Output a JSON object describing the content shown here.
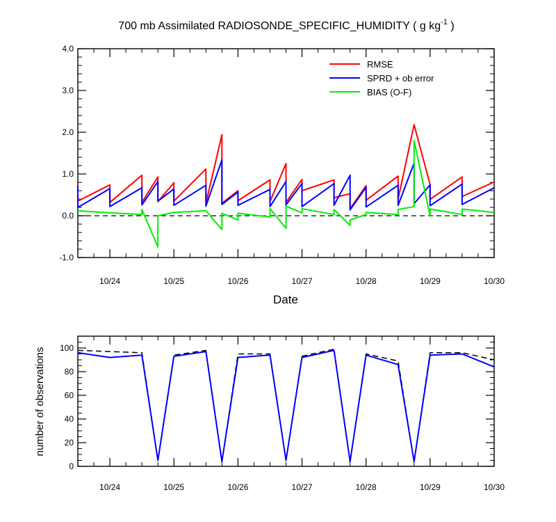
{
  "chart_data": [
    {
      "type": "line",
      "title": "700 mb Assimilated RADIOSONDE_SPECIFIC_HUMIDITY ( g kg",
      "title_exponent": "-1",
      "title_close": " )",
      "xlabel": "Date",
      "ylabel": "",
      "ylim": [
        -1.0,
        4.0
      ],
      "yticks": [
        -1.0,
        0.0,
        1.0,
        2.0,
        3.0,
        4.0
      ],
      "ytick_labels": [
        "-1.0",
        "0.0",
        "1.0",
        "2.0",
        "3.0",
        "4.0"
      ],
      "xlim": [
        23.5,
        30.0
      ],
      "xticks": [
        24,
        25,
        26,
        27,
        28,
        29,
        30
      ],
      "xtick_labels": [
        "10/24",
        "10/25",
        "10/26",
        "10/27",
        "10/28",
        "10/29",
        "10/30"
      ],
      "grid": false,
      "legend_position": "top-right",
      "reference_line": 0.0,
      "series": [
        {
          "name": "RMSE",
          "color": "#ff0000",
          "points": [
            [
              23.5,
              0.77
            ],
            [
              23.5,
              0.35
            ],
            [
              24.0,
              0.74
            ],
            [
              24.0,
              0.32
            ],
            [
              24.5,
              0.97
            ],
            [
              24.5,
              0.32
            ],
            [
              24.75,
              0.93
            ],
            [
              24.75,
              0.34
            ],
            [
              25.0,
              0.79
            ],
            [
              25.0,
              0.35
            ],
            [
              25.5,
              1.12
            ],
            [
              25.5,
              0.3
            ],
            [
              25.75,
              1.94
            ],
            [
              25.75,
              0.3
            ],
            [
              26.0,
              0.6
            ],
            [
              26.0,
              0.36
            ],
            [
              26.5,
              0.86
            ],
            [
              26.5,
              0.34
            ],
            [
              26.75,
              1.25
            ],
            [
              26.75,
              0.32
            ],
            [
              27.0,
              0.87
            ],
            [
              27.0,
              0.6
            ],
            [
              27.5,
              0.86
            ],
            [
              27.5,
              0.43
            ],
            [
              27.75,
              0.53
            ],
            [
              27.75,
              0.17
            ],
            [
              28.0,
              0.72
            ],
            [
              28.0,
              0.37
            ],
            [
              28.5,
              0.95
            ],
            [
              28.5,
              0.4
            ],
            [
              28.75,
              2.18
            ],
            [
              29.0,
              0.75
            ],
            [
              29.0,
              0.39
            ],
            [
              29.5,
              0.93
            ],
            [
              29.5,
              0.46
            ],
            [
              30.0,
              0.81
            ]
          ]
        },
        {
          "name": "SPRD + ob error",
          "color": "#0000ff",
          "points": [
            [
              23.5,
              0.72
            ],
            [
              23.5,
              0.2
            ],
            [
              24.0,
              0.65
            ],
            [
              24.0,
              0.22
            ],
            [
              24.5,
              0.67
            ],
            [
              24.5,
              0.26
            ],
            [
              24.75,
              0.82
            ],
            [
              24.75,
              0.35
            ],
            [
              25.0,
              0.64
            ],
            [
              25.0,
              0.25
            ],
            [
              25.5,
              0.73
            ],
            [
              25.5,
              0.23
            ],
            [
              25.75,
              1.34
            ],
            [
              25.75,
              0.27
            ],
            [
              26.0,
              0.57
            ],
            [
              26.0,
              0.25
            ],
            [
              26.5,
              0.63
            ],
            [
              26.5,
              0.22
            ],
            [
              26.75,
              0.82
            ],
            [
              26.75,
              0.26
            ],
            [
              27.0,
              0.77
            ],
            [
              27.0,
              0.22
            ],
            [
              27.5,
              0.77
            ],
            [
              27.5,
              0.25
            ],
            [
              27.75,
              0.97
            ],
            [
              27.75,
              0.14
            ],
            [
              28.0,
              0.68
            ],
            [
              28.0,
              0.21
            ],
            [
              28.5,
              0.73
            ],
            [
              28.5,
              0.25
            ],
            [
              28.75,
              1.26
            ],
            [
              28.75,
              0.29
            ],
            [
              29.0,
              0.74
            ],
            [
              29.0,
              0.24
            ],
            [
              29.5,
              0.76
            ],
            [
              29.5,
              0.27
            ],
            [
              30.0,
              0.67
            ]
          ]
        },
        {
          "name": "BIAS (O-F)",
          "color": "#00ee00",
          "points": [
            [
              23.5,
              0.12
            ],
            [
              24.0,
              0.07
            ],
            [
              24.5,
              0.03
            ],
            [
              24.5,
              0.15
            ],
            [
              24.75,
              -0.75
            ],
            [
              24.75,
              0.0
            ],
            [
              25.0,
              0.08
            ],
            [
              25.5,
              0.12
            ],
            [
              25.75,
              -0.33
            ],
            [
              25.75,
              0.06
            ],
            [
              26.0,
              -0.1
            ],
            [
              26.0,
              0.06
            ],
            [
              26.5,
              -0.03
            ],
            [
              26.5,
              0.17
            ],
            [
              26.75,
              -0.3
            ],
            [
              26.75,
              0.23
            ],
            [
              27.0,
              0.07
            ],
            [
              27.0,
              0.17
            ],
            [
              27.5,
              0.03
            ],
            [
              27.5,
              0.15
            ],
            [
              27.75,
              -0.23
            ],
            [
              27.75,
              -0.1
            ],
            [
              28.0,
              0.03
            ],
            [
              28.0,
              0.08
            ],
            [
              28.5,
              0.03
            ],
            [
              28.5,
              0.15
            ],
            [
              28.75,
              0.22
            ],
            [
              28.75,
              1.8
            ],
            [
              29.0,
              0.0
            ],
            [
              29.0,
              0.16
            ],
            [
              29.5,
              0.03
            ],
            [
              29.5,
              0.16
            ],
            [
              30.0,
              0.08
            ]
          ]
        }
      ]
    },
    {
      "type": "line",
      "title": "",
      "xlabel": "",
      "ylabel": "number of observations",
      "ylim": [
        0,
        110
      ],
      "yticks": [
        0,
        20,
        40,
        60,
        80,
        100
      ],
      "ytick_labels": [
        "0",
        "20",
        "40",
        "60",
        "80",
        "100"
      ],
      "xlim": [
        23.5,
        30.0
      ],
      "xticks": [
        24,
        25,
        26,
        27,
        28,
        29,
        30
      ],
      "xtick_labels": [
        "10/24",
        "10/25",
        "10/26",
        "10/27",
        "10/28",
        "10/29",
        "10/30"
      ],
      "grid": false,
      "series": [
        {
          "color": "#000000",
          "dashed": true,
          "points": [
            [
              23.5,
              98
            ],
            [
              24.5,
              96
            ],
            [
              24.75,
              5
            ],
            [
              25.0,
              94
            ],
            [
              25.5,
              98
            ],
            [
              25.75,
              4
            ],
            [
              26.0,
              95
            ],
            [
              26.5,
              95
            ],
            [
              26.75,
              5
            ],
            [
              27.0,
              93
            ],
            [
              27.5,
              99
            ],
            [
              27.75,
              4
            ],
            [
              28.0,
              95
            ],
            [
              28.5,
              89
            ],
            [
              28.75,
              4
            ],
            [
              29.0,
              96
            ],
            [
              29.5,
              96
            ],
            [
              30.0,
              90
            ]
          ]
        },
        {
          "color": "#0000ff",
          "dashed": false,
          "points": [
            [
              23.5,
              96
            ],
            [
              24.0,
              92
            ],
            [
              24.5,
              94
            ],
            [
              24.75,
              5
            ],
            [
              25.0,
              93
            ],
            [
              25.5,
              97
            ],
            [
              25.75,
              4
            ],
            [
              26.0,
              92
            ],
            [
              26.5,
              94
            ],
            [
              26.75,
              5
            ],
            [
              27.0,
              92
            ],
            [
              27.5,
              98
            ],
            [
              27.75,
              4
            ],
            [
              28.0,
              94
            ],
            [
              28.5,
              86
            ],
            [
              28.75,
              4
            ],
            [
              29.0,
              94
            ],
            [
              29.5,
              95
            ],
            [
              30.0,
              84
            ]
          ]
        }
      ]
    }
  ]
}
